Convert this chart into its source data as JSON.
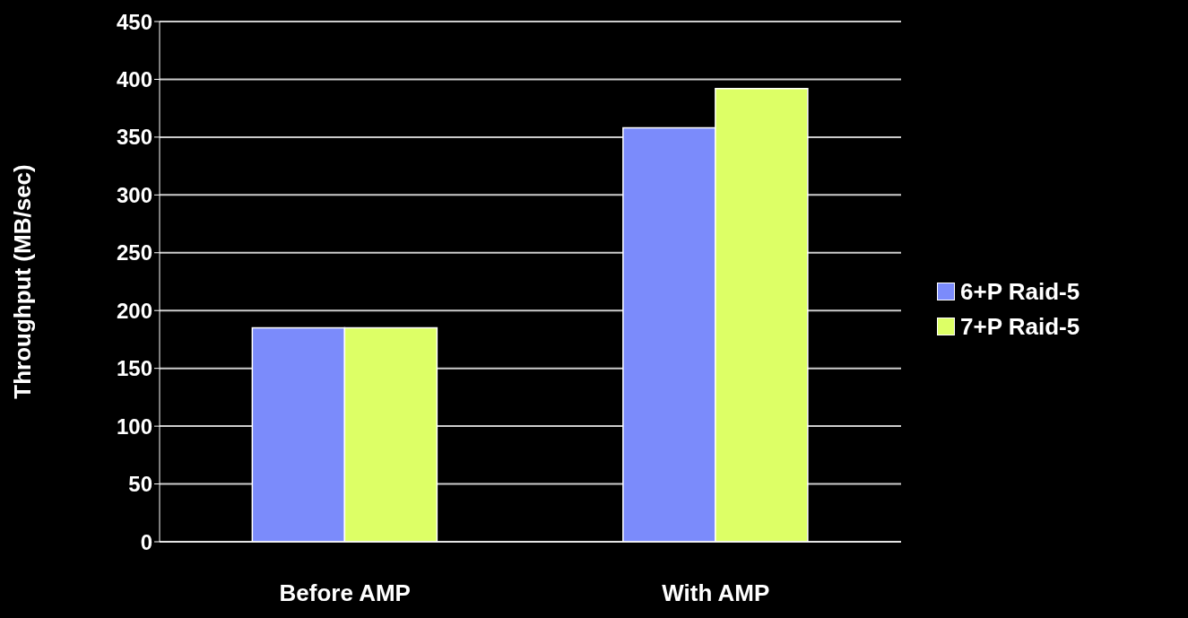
{
  "chart_data": {
    "type": "bar",
    "ylabel": "Throughput (MB/sec)",
    "categories": [
      "Before AMP",
      "With AMP"
    ],
    "series": [
      {
        "name": "6+P Raid-5",
        "color": "#7b8bfb",
        "values": [
          185,
          358
        ]
      },
      {
        "name": "7+P Raid-5",
        "color": "#ddff66",
        "values": [
          185,
          392
        ]
      }
    ],
    "ylim": [
      0,
      450
    ],
    "yticks": [
      0,
      50,
      100,
      150,
      200,
      250,
      300,
      350,
      400,
      450
    ],
    "grid": "y",
    "legend": "right"
  }
}
